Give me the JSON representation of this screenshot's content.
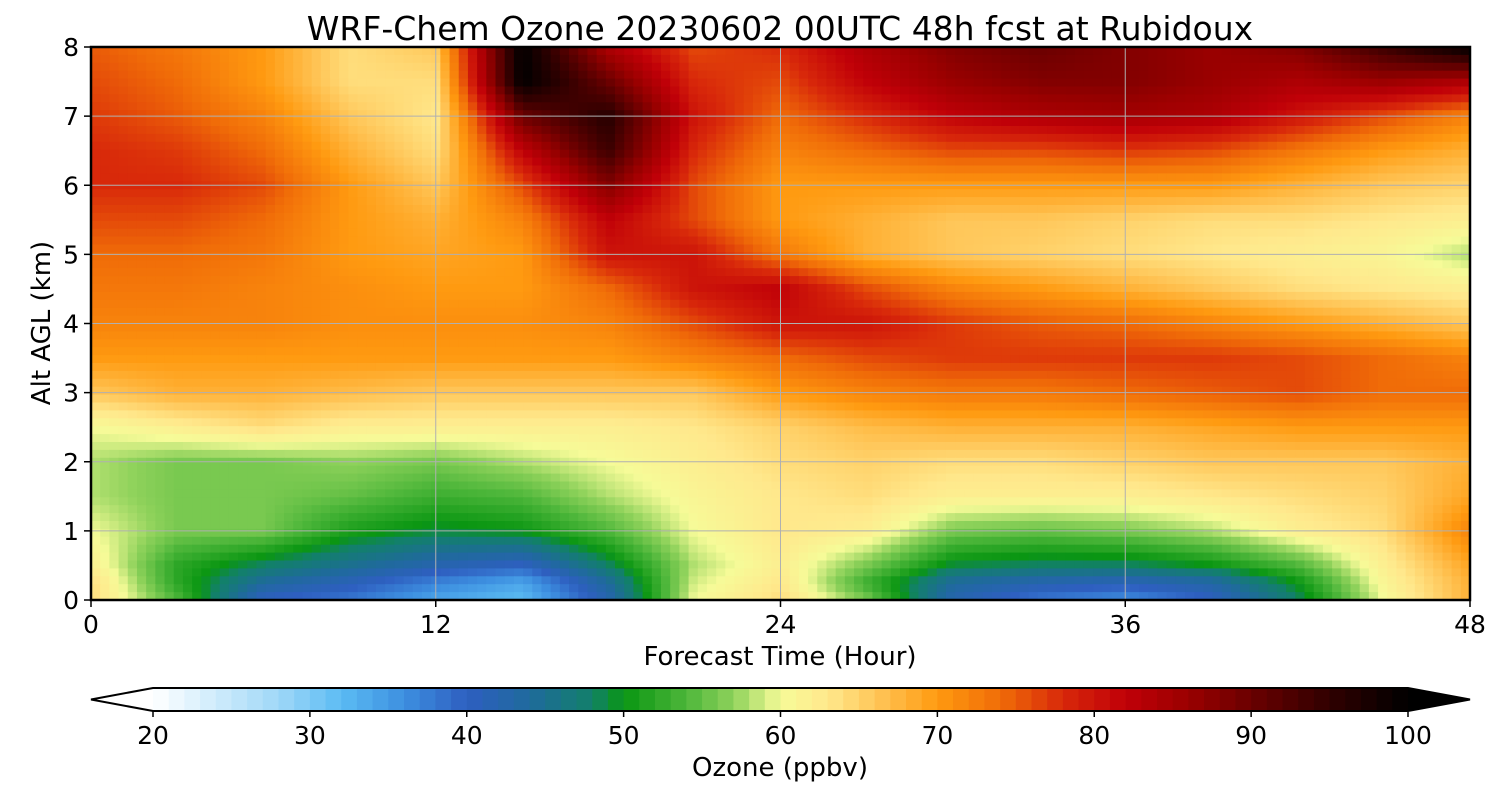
{
  "chart_data": {
    "type": "heatmap",
    "title": "WRF-Chem Ozone  20230602 00UTC 48h fcst at Rubidoux",
    "xlabel": "Forecast Time (Hour)",
    "ylabel": "Alt AGL (km)",
    "xlim": [
      0,
      48
    ],
    "ylim": [
      0,
      8
    ],
    "xticks": [
      0,
      12,
      24,
      36,
      48
    ],
    "yticks": [
      0,
      1,
      2,
      3,
      4,
      5,
      6,
      7,
      8
    ],
    "grid": true,
    "colorbar": {
      "label": "Ozone  (ppbv)",
      "range": [
        20,
        100
      ],
      "ticks": [
        20,
        30,
        40,
        50,
        60,
        70,
        80,
        90,
        100
      ],
      "extend": "both",
      "orientation": "horizontal"
    },
    "colormap": [
      [
        20,
        "#ffffff"
      ],
      [
        28,
        "#9fd7f7"
      ],
      [
        32,
        "#5bbcf3"
      ],
      [
        36,
        "#3d8fe0"
      ],
      [
        40,
        "#2e5fc0"
      ],
      [
        44,
        "#1f6a9c"
      ],
      [
        48,
        "#12806a"
      ],
      [
        50,
        "#0a9612"
      ],
      [
        54,
        "#4db63a"
      ],
      [
        57,
        "#8fd25b"
      ],
      [
        60,
        "#f6fb98"
      ],
      [
        63,
        "#ffe88c"
      ],
      [
        66,
        "#ffc75a"
      ],
      [
        70,
        "#ff9a10"
      ],
      [
        74,
        "#f06c08"
      ],
      [
        78,
        "#d8280a"
      ],
      [
        82,
        "#c00008"
      ],
      [
        86,
        "#9a0000"
      ],
      [
        90,
        "#6a0000"
      ],
      [
        95,
        "#300000"
      ],
      [
        100,
        "#000000"
      ]
    ],
    "x": [
      0,
      3,
      6,
      9,
      12,
      15,
      18,
      21,
      24,
      27,
      30,
      33,
      36,
      39,
      42,
      45,
      48
    ],
    "y": [
      0,
      0.25,
      0.5,
      1,
      1.5,
      2,
      2.5,
      3,
      3.5,
      4,
      4.5,
      5,
      5.5,
      6,
      6.5,
      7,
      7.5,
      8
    ],
    "z": [
      [
        64,
        54,
        40,
        38,
        34,
        32,
        42,
        60,
        64,
        56,
        42,
        38,
        36,
        40,
        48,
        60,
        68
      ],
      [
        64,
        52,
        44,
        41,
        37,
        34,
        44,
        59,
        63,
        53,
        44,
        42,
        41,
        43,
        50,
        61,
        68
      ],
      [
        62,
        52,
        48,
        45,
        42,
        40,
        48,
        58,
        62,
        56,
        49,
        48,
        48,
        50,
        54,
        62,
        69
      ],
      [
        60,
        56,
        56,
        51,
        49,
        50,
        54,
        60,
        63,
        62,
        56,
        55,
        56,
        58,
        62,
        64,
        72
      ],
      [
        58,
        56,
        56,
        55,
        53,
        54,
        58,
        61,
        63,
        64,
        62,
        62,
        62,
        63,
        64,
        65,
        69
      ],
      [
        58,
        56,
        56,
        57,
        56,
        58,
        60,
        62,
        64,
        65,
        64,
        64,
        65,
        66,
        66,
        66,
        68
      ],
      [
        60,
        62,
        64,
        62,
        62,
        62,
        62,
        63,
        65,
        67,
        68,
        68,
        68,
        69,
        70,
        70,
        70
      ],
      [
        66,
        68,
        68,
        67,
        66,
        66,
        66,
        66,
        70,
        72,
        73,
        73,
        74,
        75,
        76,
        74,
        74
      ],
      [
        70,
        70,
        70,
        70,
        70,
        70,
        70,
        72,
        74,
        76,
        77,
        77,
        77,
        77,
        76,
        74,
        72
      ],
      [
        72,
        72,
        72,
        71,
        71,
        71,
        72,
        76,
        80,
        80,
        77,
        75,
        74,
        72,
        70,
        68,
        66
      ],
      [
        73,
        73,
        72,
        71,
        70,
        70,
        74,
        80,
        82,
        76,
        72,
        70,
        68,
        66,
        64,
        63,
        62
      ],
      [
        74,
        74,
        73,
        70,
        69,
        70,
        80,
        80,
        73,
        68,
        66,
        65,
        64,
        63,
        62,
        61,
        58
      ],
      [
        76,
        76,
        74,
        70,
        68,
        72,
        82,
        76,
        70,
        68,
        66,
        66,
        65,
        64,
        64,
        63,
        62
      ],
      [
        78,
        78,
        76,
        70,
        66,
        76,
        88,
        76,
        70,
        70,
        70,
        70,
        70,
        70,
        68,
        66,
        65
      ],
      [
        78,
        77,
        74,
        68,
        64,
        82,
        94,
        78,
        72,
        74,
        76,
        76,
        77,
        76,
        73,
        70,
        68
      ],
      [
        77,
        75,
        72,
        66,
        63,
        90,
        96,
        80,
        74,
        78,
        82,
        84,
        85,
        84,
        80,
        76,
        72
      ],
      [
        76,
        74,
        70,
        64,
        64,
        100,
        90,
        78,
        76,
        82,
        86,
        88,
        88,
        86,
        84,
        86,
        84
      ],
      [
        75,
        73,
        70,
        64,
        66,
        100,
        84,
        76,
        78,
        84,
        88,
        90,
        88,
        86,
        88,
        94,
        100
      ]
    ]
  }
}
